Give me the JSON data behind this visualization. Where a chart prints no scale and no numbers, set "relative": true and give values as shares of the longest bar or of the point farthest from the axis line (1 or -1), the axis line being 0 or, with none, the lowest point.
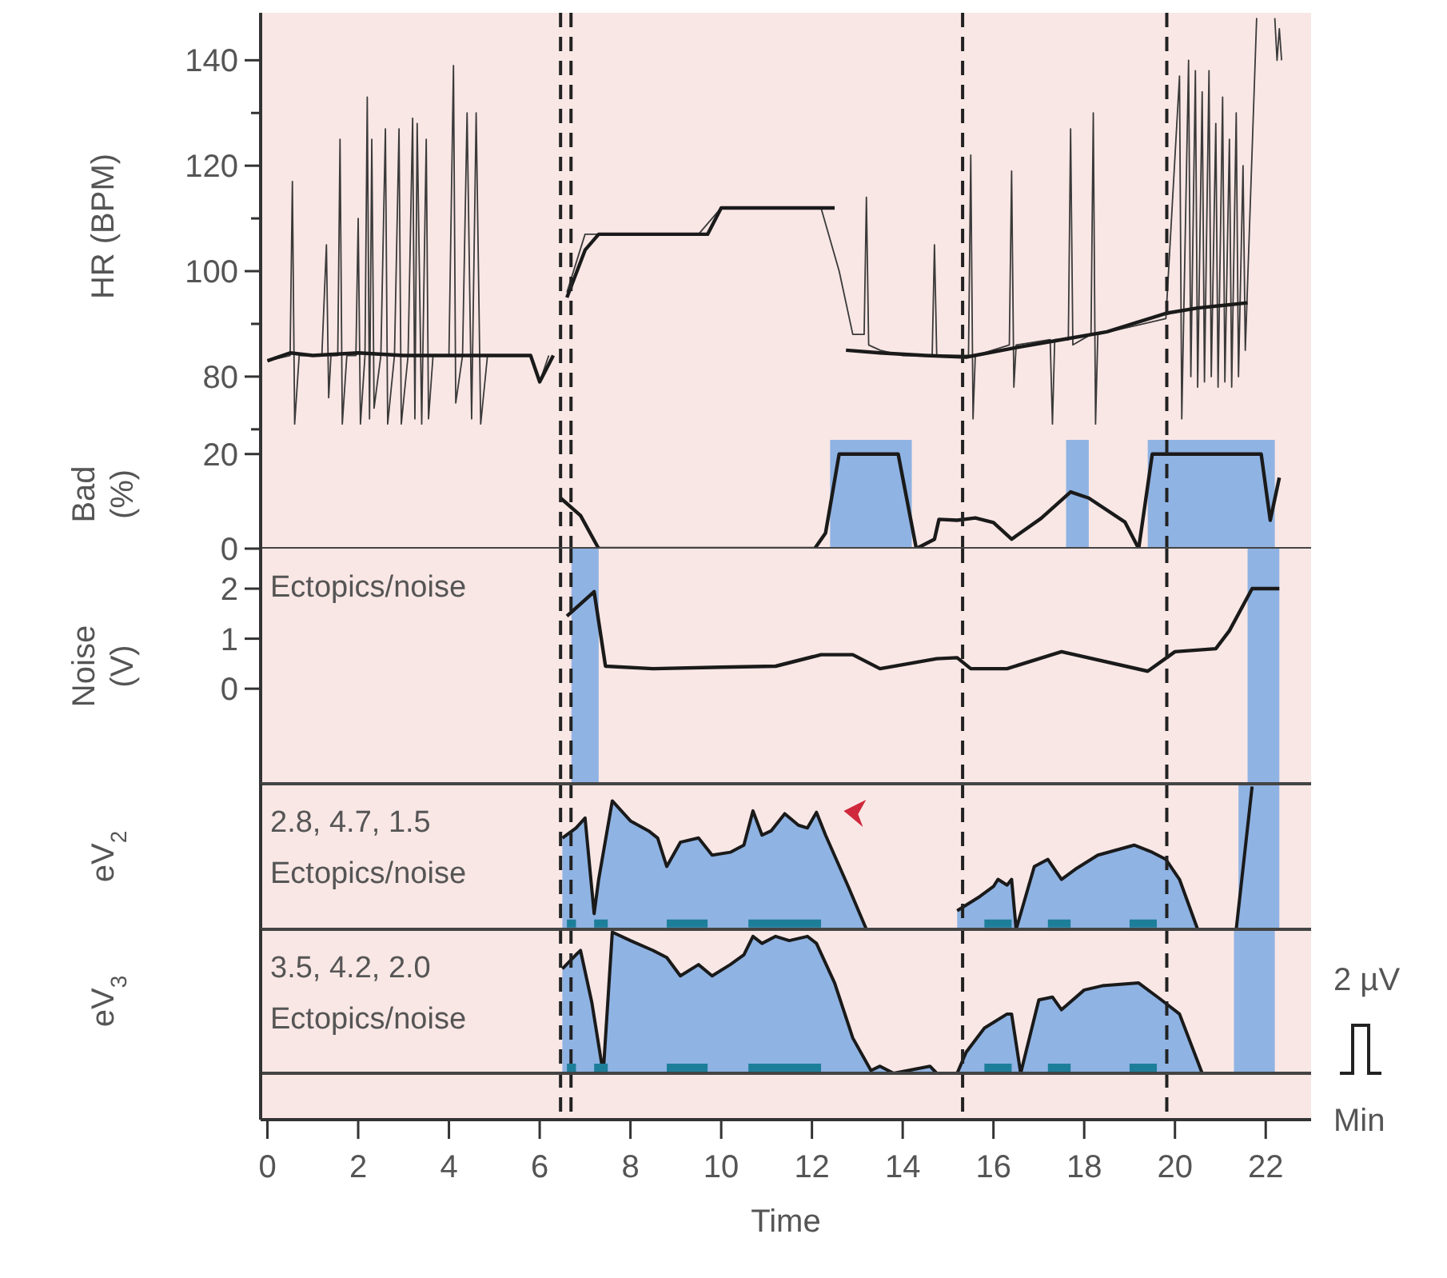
{
  "chart_data": [
    {
      "type": "line",
      "ylabel": "HR (BPM)",
      "xlim": [
        -0.15,
        23
      ],
      "ylim": [
        68,
        149
      ],
      "yticks": [
        {
          "value": 70,
          "label": null
        },
        80,
        {
          "value": 90,
          "label": null
        },
        100,
        {
          "value": 110,
          "label": null
        },
        120,
        {
          "value": 130,
          "label": null
        },
        140
      ],
      "tick_labels": "y",
      "ref_lines": [
        {
          "axis": "x",
          "value": 6.46,
          "line_style": "dashed",
          "color": "#222222"
        },
        {
          "axis": "x",
          "value": 6.69,
          "line_style": "dashed",
          "color": "#222222"
        },
        {
          "axis": "x",
          "value": 15.32,
          "line_style": "dashed",
          "color": "#222222"
        },
        {
          "axis": "x",
          "value": 19.82,
          "line_style": "dashed",
          "color": "#222222"
        }
      ],
      "series": [
        {
          "color": "#3a3a3a",
          "x": [
            0,
            0.5,
            0.55,
            0.6,
            0.7,
            1.2,
            1.3,
            1.35,
            1.4,
            1.55,
            1.6,
            1.65,
            1.75,
            1.95,
            2.0,
            2.05,
            2.15,
            2.2,
            2.25,
            2.3,
            2.35,
            2.5,
            2.6,
            2.65,
            2.8,
            2.9,
            2.95,
            3.1,
            3.2,
            3.25,
            3.3,
            3.4,
            3.5,
            3.55,
            3.65,
            4.0,
            4.1,
            4.15,
            4.3,
            4.4,
            4.5,
            4.6,
            4.7,
            4.85,
            5.5,
            5.8,
            6.0,
            6.2,
            6.4,
            6.6,
            7.0,
            9.5,
            10.0,
            12.2,
            12.6,
            12.9,
            13.15,
            13.2,
            13.25,
            13.5,
            14.0,
            14.65,
            14.7,
            14.75,
            15.45,
            15.5,
            15.55,
            15.6,
            16.35,
            16.4,
            16.45,
            16.5,
            17.25,
            17.3,
            17.35,
            17.65,
            17.7,
            17.75,
            18.15,
            18.2,
            18.25,
            18.3,
            19.8,
            20.1,
            20.15,
            20.3,
            20.35,
            20.45,
            20.5,
            20.6,
            20.65,
            20.75,
            20.8,
            20.9,
            20.95,
            21.05,
            21.1,
            21.2,
            21.25,
            21.35,
            21.4,
            21.5,
            21.55,
            21.8,
            22.0,
            22.2,
            22.25,
            22.3,
            22.35
          ],
          "values": [
            83,
            84,
            117,
            71,
            84,
            84,
            105,
            76,
            84,
            84,
            125,
            71,
            84,
            84,
            110,
            71,
            84,
            133,
            72,
            125,
            74,
            84,
            127,
            71,
            84,
            127,
            71,
            84,
            129,
            72,
            128,
            71,
            125,
            72,
            84,
            84,
            139,
            75,
            84,
            130,
            72,
            130,
            71,
            84,
            84,
            84,
            79,
            84,
            null,
            96,
            107,
            107,
            112,
            112,
            100,
            88,
            88,
            114,
            86,
            85,
            84,
            84,
            105,
            84,
            84,
            122,
            72,
            84,
            86,
            119,
            78,
            86,
            87,
            71,
            87,
            87,
            127,
            86,
            88,
            130,
            71,
            88,
            91,
            137,
            72,
            140,
            80,
            138,
            78,
            134,
            79,
            138,
            80,
            128,
            78,
            133,
            79,
            125,
            78,
            130,
            80,
            120,
            85,
            148,
            null,
            148,
            140,
            146,
            140
          ]
        },
        {
          "color": "#1a1a1a",
          "x": [
            0,
            0.5,
            1,
            2,
            3,
            4,
            5,
            5.8,
            6.0,
            6.3,
            6.45,
            6.6,
            7.0,
            7.3,
            9.7,
            10.0,
            12.5,
            12.6,
            12.75,
            13.5,
            14.5,
            15.4,
            16.5,
            17.5,
            18.5,
            19.8,
            20.5,
            21.6
          ],
          "values": [
            83,
            84.5,
            84,
            84.5,
            84,
            84,
            84,
            84,
            79,
            84,
            null,
            95,
            104,
            107,
            107,
            112,
            112,
            null,
            85,
            84.5,
            84,
            83.7,
            85.5,
            87,
            88.5,
            92,
            93,
            94
          ]
        }
      ]
    },
    {
      "type": "line",
      "ylabel": "Bad\n(%)",
      "xlim": [
        -0.15,
        23
      ],
      "ylim": [
        0,
        23
      ],
      "yticks": [
        0,
        20
      ],
      "tick_labels": "y",
      "bands": [
        {
          "axis": "x",
          "from": 12.4,
          "to": 14.2,
          "color": "#8fb3e3"
        },
        {
          "axis": "x",
          "from": 17.6,
          "to": 18.1,
          "color": "#8fb3e3"
        },
        {
          "axis": "x",
          "from": 19.4,
          "to": 22.2,
          "color": "#8fb3e3"
        }
      ],
      "ref_lines": [
        {
          "axis": "x",
          "value": 6.46,
          "line_style": "dashed",
          "color": "#222222"
        },
        {
          "axis": "x",
          "value": 6.69,
          "line_style": "dashed",
          "color": "#222222"
        },
        {
          "axis": "x",
          "value": 15.32,
          "line_style": "dashed",
          "color": "#222222"
        },
        {
          "axis": "x",
          "value": 19.82,
          "line_style": "dashed",
          "color": "#222222"
        }
      ],
      "series": [
        {
          "color": "#1a1a1a",
          "x": [
            6.46,
            6.9,
            7.3,
            12.06,
            12.3,
            12.6,
            13.9,
            14.3,
            14.7,
            14.8,
            15.2,
            15.6,
            16.0,
            16.4,
            17.05,
            17.7,
            18.1,
            18.9,
            19.2,
            19.5,
            21.9,
            22.1,
            22.3
          ],
          "values": [
            10.7,
            7,
            0,
            0,
            3.3,
            20,
            20,
            0,
            2,
            6.2,
            6,
            6.5,
            5.5,
            2,
            6.4,
            12,
            10.7,
            5.6,
            0,
            20,
            20,
            6,
            15
          ]
        }
      ]
    },
    {
      "type": "line",
      "ylabel": "Noise\n(V)",
      "xlim": [
        -0.15,
        23
      ],
      "ylim": [
        -1.9,
        2.8
      ],
      "yticks": [
        0,
        1,
        2
      ],
      "tick_labels": "y",
      "annotations": [
        "Ectopics/noise"
      ],
      "bands": [
        {
          "axis": "x",
          "from": 6.7,
          "to": 7.3,
          "color": "#8fb3e3"
        },
        {
          "axis": "x",
          "from": 21.6,
          "to": 22.3,
          "color": "#8fb3e3"
        }
      ],
      "ref_lines": [
        {
          "axis": "x",
          "value": 6.46,
          "line_style": "dashed",
          "color": "#222222"
        },
        {
          "axis": "x",
          "value": 6.69,
          "line_style": "dashed",
          "color": "#222222"
        },
        {
          "axis": "x",
          "value": 15.32,
          "line_style": "dashed",
          "color": "#222222"
        },
        {
          "axis": "x",
          "value": 19.82,
          "line_style": "dashed",
          "color": "#222222"
        }
      ],
      "series": [
        {
          "color": "#1a1a1a",
          "x": [
            6.6,
            7.2,
            7.45,
            8.5,
            10,
            11.2,
            12.2,
            12.9,
            13.5,
            14.75,
            15.2,
            15.5,
            16.3,
            17.5,
            19.4,
            20.0,
            20.9,
            21.2,
            21.7,
            22.3
          ],
          "values": [
            1.45,
            1.94,
            0.45,
            0.4,
            0.43,
            0.45,
            0.68,
            0.68,
            0.4,
            0.6,
            0.62,
            0.4,
            0.4,
            0.74,
            0.35,
            0.74,
            0.8,
            1.16,
            2.0,
            2.0
          ]
        }
      ]
    },
    {
      "type": "area",
      "ylabel": "eV$_{2}$",
      "relative": true,
      "xlim": [
        -0.15,
        23
      ],
      "tick_labels": false,
      "annotations": [
        "2.8, 4.7, 1.5",
        "Ectopics/noise"
      ],
      "bands": [
        {
          "axis": "x",
          "from": 21.4,
          "to": 22.3,
          "color": "#8fb3e3"
        }
      ],
      "ref_lines": [
        {
          "axis": "x",
          "value": 6.46,
          "line_style": "dashed",
          "color": "#222222"
        },
        {
          "axis": "x",
          "value": 6.69,
          "line_style": "dashed",
          "color": "#222222"
        },
        {
          "axis": "x",
          "value": 15.32,
          "line_style": "dashed",
          "color": "#222222"
        },
        {
          "axis": "x",
          "value": 19.82,
          "line_style": "dashed",
          "color": "#222222"
        }
      ],
      "series": [
        {
          "color": "#8fb3e3",
          "x": [
            6.5,
            6.8,
            7.0,
            7.2,
            7.3,
            7.6,
            8.0,
            8.4,
            8.6,
            8.8,
            9.1,
            9.5,
            9.8,
            10.2,
            10.5,
            10.7,
            10.9,
            11.1,
            11.4,
            11.7,
            11.9,
            12.1,
            12.3,
            12.8,
            13.2,
            13.3,
            15.2,
            15.7,
            16.0,
            16.1,
            16.3,
            16.4,
            16.5,
            16.9,
            17.2,
            17.5,
            17.8,
            18.3,
            19.1,
            19.5,
            19.8,
            20.1,
            20.5,
            21.35,
            21.7
          ],
          "values": [
            0.64,
            0.71,
            0.78,
            0.11,
            0.35,
            0.9,
            0.76,
            0.69,
            0.64,
            0.44,
            0.61,
            0.64,
            0.52,
            0.54,
            0.59,
            0.83,
            0.66,
            0.69,
            0.81,
            0.73,
            0.71,
            0.82,
            0.66,
            0.3,
            0,
            null,
            0.13,
            0.23,
            0.3,
            0.35,
            0.31,
            0.35,
            0,
            0.44,
            0.49,
            0.35,
            0.42,
            0.52,
            0.59,
            0.54,
            0.49,
            0.35,
            0,
            0,
            1
          ]
        },
        {
          "type": "line",
          "color": "#1d7e9a",
          "x": [
            6.6,
            6.8,
            6.9,
            7.2,
            7.5,
            7.6,
            8.8,
            9.7,
            9.8,
            10.6,
            12.2,
            12.3,
            15.8,
            16.4,
            16.5,
            17.2,
            17.7,
            17.8,
            19.0,
            19.6
          ],
          "values": [
            0.04,
            0.04,
            null,
            0.04,
            0.04,
            null,
            0.04,
            0.04,
            null,
            0.04,
            0.04,
            null,
            0.04,
            0.04,
            null,
            0.04,
            0.04,
            null,
            0.04,
            0.04
          ]
        }
      ]
    },
    {
      "type": "area",
      "ylabel": "eV$_{3}$",
      "y2label": "2 µV",
      "xlabel": "Time",
      "relative": true,
      "xlim": [
        -0.15,
        23
      ],
      "xticks": [
        0,
        2,
        4,
        6,
        8,
        10,
        12,
        14,
        16,
        18,
        20,
        22
      ],
      "tick_labels": "x",
      "annotations": [
        "3.5, 4.2, 2.0",
        "Ectopics/noise",
        "Min"
      ],
      "bands": [
        {
          "axis": "x",
          "from": 21.3,
          "to": 22.2,
          "color": "#8fb3e3"
        }
      ],
      "ref_lines": [
        {
          "axis": "x",
          "value": 6.46,
          "line_style": "dashed",
          "color": "#222222"
        },
        {
          "axis": "x",
          "value": 6.69,
          "line_style": "dashed",
          "color": "#222222"
        },
        {
          "axis": "x",
          "value": 15.32,
          "line_style": "dashed",
          "color": "#222222"
        },
        {
          "axis": "x",
          "value": 19.82,
          "line_style": "dashed",
          "color": "#222222"
        }
      ],
      "series": [
        {
          "color": "#8fb3e3",
          "x": [
            6.5,
            6.8,
            6.9,
            7.15,
            7.4,
            7.6,
            8.0,
            8.5,
            8.8,
            9.1,
            9.5,
            9.8,
            10.2,
            10.5,
            10.7,
            10.9,
            11.2,
            11.5,
            11.9,
            12.1,
            12.5,
            12.9,
            13.3,
            13.5,
            13.8,
            14.6,
            14.75,
            15.2,
            15.4,
            15.8,
            16.3,
            16.4,
            16.6,
            17.0,
            17.3,
            17.5,
            18.0,
            18.4,
            19.2,
            19.7,
            20.1,
            20.6
          ],
          "values": [
            0.74,
            0.84,
            0.87,
            0.5,
            0,
            1,
            0.94,
            0.87,
            0.82,
            0.69,
            0.77,
            0.69,
            0.77,
            0.84,
            0.97,
            0.92,
            0.97,
            0.94,
            0.97,
            0.92,
            0.64,
            0.25,
            0.02,
            0.05,
            0,
            0.05,
            0,
            0,
            0.15,
            0.32,
            0.42,
            0.42,
            0,
            0.52,
            0.54,
            0.45,
            0.59,
            0.62,
            0.64,
            0.52,
            0.42,
            0
          ]
        },
        {
          "type": "line",
          "color": "#1d7e9a",
          "x": [
            6.6,
            6.8,
            6.9,
            7.2,
            7.5,
            7.6,
            8.8,
            9.7,
            9.8,
            10.6,
            12.2,
            12.3,
            15.8,
            16.4,
            16.5,
            17.2,
            17.7,
            17.8,
            19.0,
            19.6
          ],
          "values": [
            0.04,
            0.04,
            null,
            0.04,
            0.04,
            null,
            0.04,
            0.04,
            null,
            0.04,
            0.04,
            null,
            0.04,
            0.04,
            null,
            0.04,
            0.04,
            null,
            0.04,
            0.04
          ]
        }
      ]
    }
  ]
}
